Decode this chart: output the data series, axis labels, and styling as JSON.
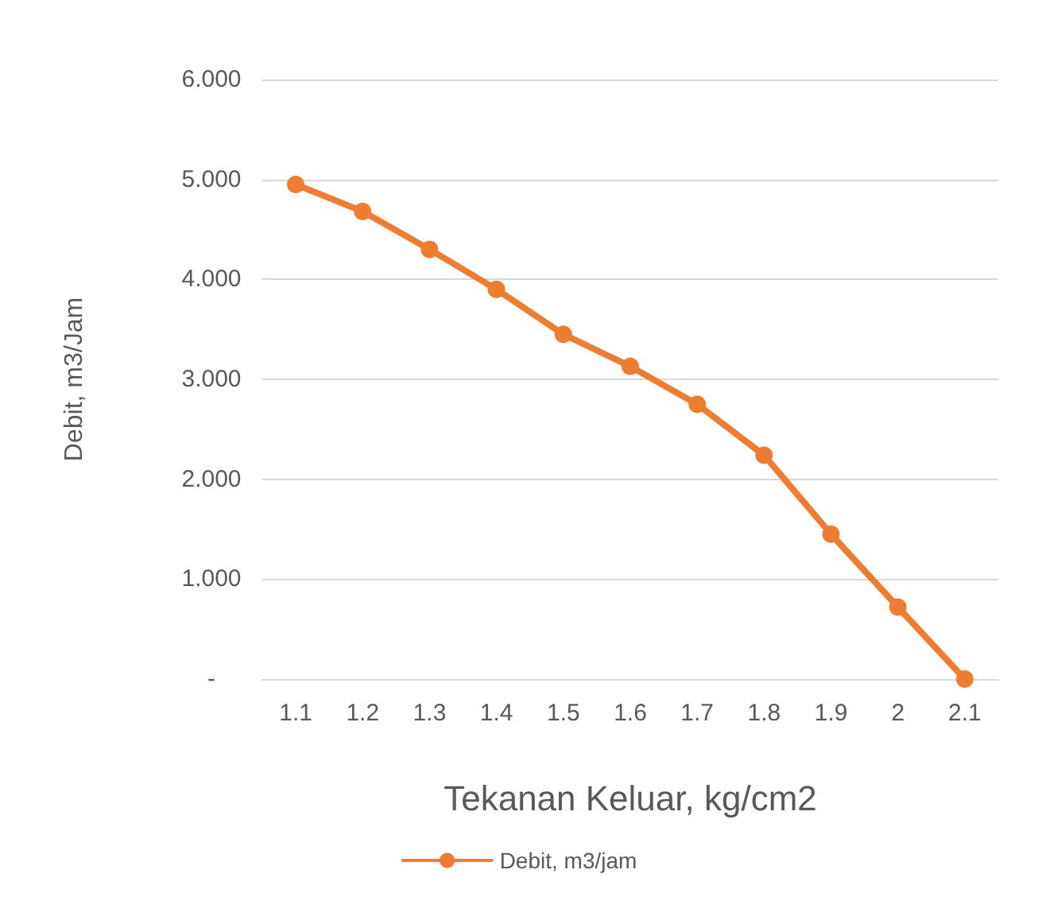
{
  "chart_data": {
    "type": "line",
    "xlabel": "Tekanan Keluar, kg/cm2",
    "ylabel": "Debit, m3/Jam",
    "categories": [
      "1.1",
      "1.2",
      "1.3",
      "1.4",
      "1.5",
      "1.6",
      "1.7",
      "1.8",
      "1.9",
      "2",
      "2.1"
    ],
    "series": [
      {
        "name": "Debit, m3/jam",
        "color": "#ed7d31",
        "values": [
          4.95,
          4.68,
          4.3,
          3.9,
          3.45,
          3.13,
          2.75,
          2.24,
          1.45,
          0.72,
          0
        ]
      }
    ],
    "ylim": [
      0,
      6
    ],
    "yticks": [
      {
        "value": 0,
        "label": "-"
      },
      {
        "value": 1,
        "label": "1.000"
      },
      {
        "value": 2,
        "label": "2.000"
      },
      {
        "value": 3,
        "label": "3.000"
      },
      {
        "value": 4,
        "label": "4.000"
      },
      {
        "value": 5,
        "label": "5.000"
      },
      {
        "value": 6,
        "label": "6.000"
      }
    ],
    "grid": "y",
    "legend": "bottom",
    "marker": "circle",
    "line_style": "solid"
  }
}
